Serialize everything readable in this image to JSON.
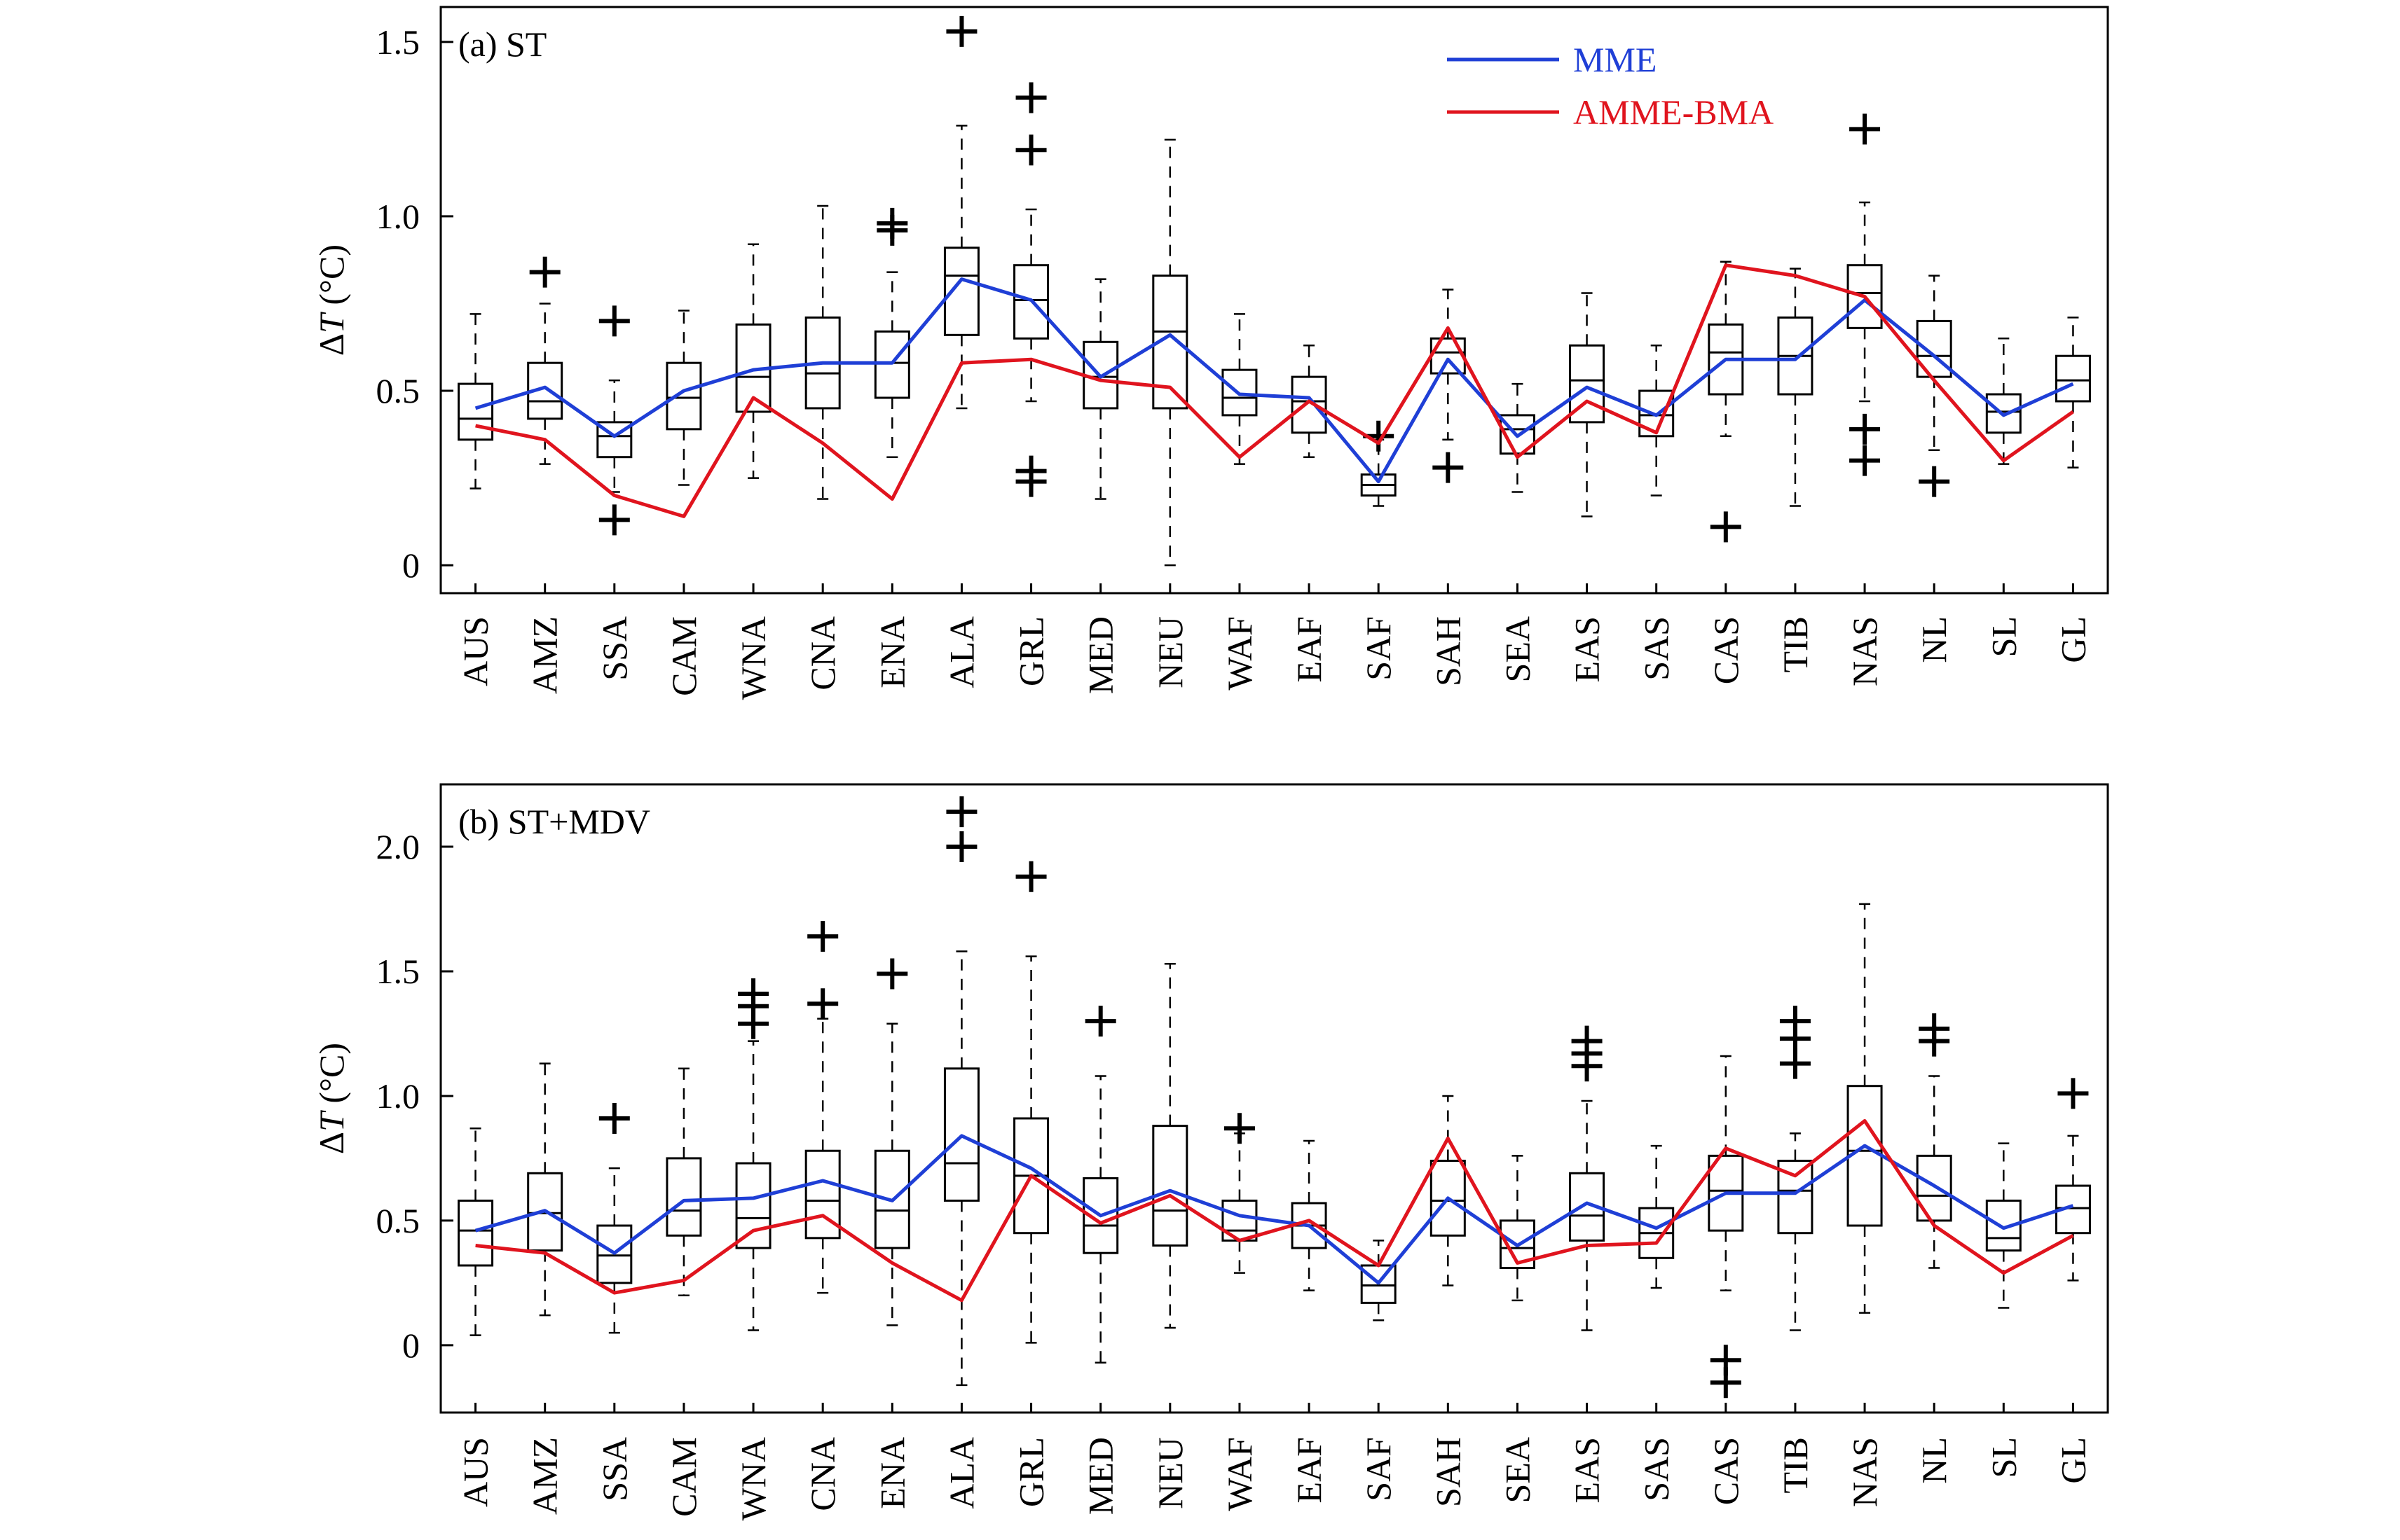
{
  "chart_data": [
    {
      "type": "box",
      "title": "(a) ST",
      "xlabel": "",
      "ylabel_prefix": "Δ",
      "ylabel_var": "T",
      "ylabel_unit": " (°C)",
      "ylim": [
        -0.08,
        1.6
      ],
      "yticks": [
        0,
        0.5,
        1.0,
        1.5
      ],
      "ytick_labels": [
        "0",
        "0.5",
        "1.0",
        "1.5"
      ],
      "legend_position": "top-right",
      "categories": [
        "AUS",
        "AMZ",
        "SSA",
        "CAM",
        "WNA",
        "CNA",
        "ENA",
        "ALA",
        "GRL",
        "MED",
        "NEU",
        "WAF",
        "EAF",
        "SAF",
        "SAH",
        "SEA",
        "EAS",
        "SAS",
        "CAS",
        "TIB",
        "NAS",
        "NL",
        "SL",
        "GL"
      ],
      "boxes": [
        {
          "min": 0.22,
          "q1": 0.36,
          "median": 0.42,
          "q3": 0.52,
          "max": 0.72,
          "outliers": []
        },
        {
          "min": 0.29,
          "q1": 0.42,
          "median": 0.47,
          "q3": 0.58,
          "max": 0.75,
          "outliers": [
            0.84
          ]
        },
        {
          "min": 0.21,
          "q1": 0.31,
          "median": 0.37,
          "q3": 0.41,
          "max": 0.53,
          "outliers": [
            0.7,
            0.13
          ]
        },
        {
          "min": 0.23,
          "q1": 0.39,
          "median": 0.48,
          "q3": 0.58,
          "max": 0.73,
          "outliers": []
        },
        {
          "min": 0.25,
          "q1": 0.44,
          "median": 0.54,
          "q3": 0.69,
          "max": 0.92,
          "outliers": []
        },
        {
          "min": 0.19,
          "q1": 0.45,
          "median": 0.55,
          "q3": 0.71,
          "max": 1.03,
          "outliers": []
        },
        {
          "min": 0.31,
          "q1": 0.48,
          "median": 0.58,
          "q3": 0.67,
          "max": 0.84,
          "outliers": [
            0.96,
            0.98
          ]
        },
        {
          "min": 0.45,
          "q1": 0.66,
          "median": 0.83,
          "q3": 0.91,
          "max": 1.26,
          "outliers": [
            1.53
          ]
        },
        {
          "min": 0.47,
          "q1": 0.65,
          "median": 0.76,
          "q3": 0.86,
          "max": 1.02,
          "outliers": [
            1.34,
            1.19,
            0.27,
            0.24
          ]
        },
        {
          "min": 0.19,
          "q1": 0.45,
          "median": 0.54,
          "q3": 0.64,
          "max": 0.82,
          "outliers": []
        },
        {
          "min": 0.0,
          "q1": 0.45,
          "median": 0.67,
          "q3": 0.83,
          "max": 1.22,
          "outliers": []
        },
        {
          "min": 0.29,
          "q1": 0.43,
          "median": 0.48,
          "q3": 0.56,
          "max": 0.72,
          "outliers": []
        },
        {
          "min": 0.31,
          "q1": 0.38,
          "median": 0.47,
          "q3": 0.54,
          "max": 0.63,
          "outliers": []
        },
        {
          "min": 0.17,
          "q1": 0.2,
          "median": 0.23,
          "q3": 0.26,
          "max": 0.36,
          "outliers": [
            0.37
          ]
        },
        {
          "min": 0.36,
          "q1": 0.55,
          "median": 0.61,
          "q3": 0.65,
          "max": 0.79,
          "outliers": [
            0.28
          ]
        },
        {
          "min": 0.21,
          "q1": 0.32,
          "median": 0.39,
          "q3": 0.43,
          "max": 0.52,
          "outliers": []
        },
        {
          "min": 0.14,
          "q1": 0.41,
          "median": 0.53,
          "q3": 0.63,
          "max": 0.78,
          "outliers": []
        },
        {
          "min": 0.2,
          "q1": 0.37,
          "median": 0.43,
          "q3": 0.5,
          "max": 0.63,
          "outliers": []
        },
        {
          "min": 0.37,
          "q1": 0.49,
          "median": 0.61,
          "q3": 0.69,
          "max": 0.87,
          "outliers": [
            0.11
          ]
        },
        {
          "min": 0.17,
          "q1": 0.49,
          "median": 0.6,
          "q3": 0.71,
          "max": 0.85,
          "outliers": []
        },
        {
          "min": 0.47,
          "q1": 0.68,
          "median": 0.78,
          "q3": 0.86,
          "max": 1.04,
          "outliers": [
            1.25,
            0.39,
            0.3
          ]
        },
        {
          "min": 0.33,
          "q1": 0.54,
          "median": 0.6,
          "q3": 0.7,
          "max": 0.83,
          "outliers": [
            0.24
          ]
        },
        {
          "min": 0.29,
          "q1": 0.38,
          "median": 0.44,
          "q3": 0.49,
          "max": 0.65,
          "outliers": []
        },
        {
          "min": 0.28,
          "q1": 0.47,
          "median": 0.53,
          "q3": 0.6,
          "max": 0.71,
          "outliers": []
        }
      ],
      "series": [
        {
          "name": "MME",
          "color": "#1f3fd6",
          "values": [
            0.45,
            0.51,
            0.37,
            0.5,
            0.56,
            0.58,
            0.58,
            0.82,
            0.76,
            0.54,
            0.66,
            0.49,
            0.48,
            0.24,
            0.59,
            0.37,
            0.51,
            0.43,
            0.59,
            0.59,
            0.76,
            0.6,
            0.43,
            0.52
          ]
        },
        {
          "name": "AMME-BMA",
          "color": "#e0141e",
          "values": [
            0.4,
            0.36,
            0.2,
            0.14,
            0.48,
            0.35,
            0.19,
            0.58,
            0.59,
            0.53,
            0.51,
            0.31,
            0.47,
            0.35,
            0.68,
            0.31,
            0.47,
            0.38,
            0.86,
            0.83,
            0.77,
            0.53,
            0.3,
            0.44
          ]
        }
      ]
    },
    {
      "type": "box",
      "title": "(b) ST+MDV",
      "xlabel": "",
      "ylabel_prefix": "Δ",
      "ylabel_var": "T",
      "ylabel_unit": " (°C)",
      "ylim": [
        -0.27,
        2.25
      ],
      "yticks": [
        0,
        0.5,
        1.0,
        1.5,
        2.0
      ],
      "ytick_labels": [
        "0",
        "0.5",
        "1.0",
        "1.5",
        "2.0"
      ],
      "categories": [
        "AUS",
        "AMZ",
        "SSA",
        "CAM",
        "WNA",
        "CNA",
        "ENA",
        "ALA",
        "GRL",
        "MED",
        "NEU",
        "WAF",
        "EAF",
        "SAF",
        "SAH",
        "SEA",
        "EAS",
        "SAS",
        "CAS",
        "TIB",
        "NAS",
        "NL",
        "SL",
        "GL"
      ],
      "boxes": [
        {
          "min": 0.04,
          "q1": 0.32,
          "median": 0.46,
          "q3": 0.58,
          "max": 0.87,
          "outliers": []
        },
        {
          "min": 0.12,
          "q1": 0.38,
          "median": 0.53,
          "q3": 0.69,
          "max": 1.13,
          "outliers": []
        },
        {
          "min": 0.05,
          "q1": 0.25,
          "median": 0.36,
          "q3": 0.48,
          "max": 0.71,
          "outliers": [
            0.91
          ]
        },
        {
          "min": 0.2,
          "q1": 0.44,
          "median": 0.54,
          "q3": 0.75,
          "max": 1.11,
          "outliers": []
        },
        {
          "min": 0.06,
          "q1": 0.39,
          "median": 0.51,
          "q3": 0.73,
          "max": 1.22,
          "outliers": [
            1.29,
            1.36,
            1.41
          ]
        },
        {
          "min": 0.21,
          "q1": 0.43,
          "median": 0.58,
          "q3": 0.78,
          "max": 1.31,
          "outliers": [
            1.37,
            1.64
          ]
        },
        {
          "min": 0.08,
          "q1": 0.39,
          "median": 0.54,
          "q3": 0.78,
          "max": 1.29,
          "outliers": [
            1.49
          ]
        },
        {
          "min": -0.16,
          "q1": 0.58,
          "median": 0.73,
          "q3": 1.11,
          "max": 1.58,
          "outliers": [
            2.14,
            2.0
          ]
        },
        {
          "min": 0.01,
          "q1": 0.45,
          "median": 0.68,
          "q3": 0.91,
          "max": 1.56,
          "outliers": [
            1.88
          ]
        },
        {
          "min": -0.07,
          "q1": 0.37,
          "median": 0.48,
          "q3": 0.67,
          "max": 1.08,
          "outliers": [
            1.3
          ]
        },
        {
          "min": 0.07,
          "q1": 0.4,
          "median": 0.54,
          "q3": 0.88,
          "max": 1.53,
          "outliers": []
        },
        {
          "min": 0.29,
          "q1": 0.42,
          "median": 0.46,
          "q3": 0.58,
          "max": 0.85,
          "outliers": [
            0.87
          ]
        },
        {
          "min": 0.22,
          "q1": 0.39,
          "median": 0.48,
          "q3": 0.57,
          "max": 0.82,
          "outliers": []
        },
        {
          "min": 0.1,
          "q1": 0.17,
          "median": 0.24,
          "q3": 0.32,
          "max": 0.42,
          "outliers": []
        },
        {
          "min": 0.24,
          "q1": 0.44,
          "median": 0.58,
          "q3": 0.74,
          "max": 1.0,
          "outliers": []
        },
        {
          "min": 0.18,
          "q1": 0.31,
          "median": 0.39,
          "q3": 0.5,
          "max": 0.76,
          "outliers": []
        },
        {
          "min": 0.06,
          "q1": 0.42,
          "median": 0.52,
          "q3": 0.69,
          "max": 0.98,
          "outliers": [
            1.12,
            1.17,
            1.22
          ]
        },
        {
          "min": 0.23,
          "q1": 0.35,
          "median": 0.45,
          "q3": 0.55,
          "max": 0.8,
          "outliers": []
        },
        {
          "min": 0.22,
          "q1": 0.46,
          "median": 0.62,
          "q3": 0.76,
          "max": 1.16,
          "outliers": [
            -0.06,
            -0.15
          ]
        },
        {
          "min": 0.06,
          "q1": 0.45,
          "median": 0.62,
          "q3": 0.74,
          "max": 0.85,
          "outliers": [
            1.13,
            1.23,
            1.3
          ]
        },
        {
          "min": 0.13,
          "q1": 0.48,
          "median": 0.78,
          "q3": 1.04,
          "max": 1.77,
          "outliers": []
        },
        {
          "min": 0.31,
          "q1": 0.5,
          "median": 0.6,
          "q3": 0.76,
          "max": 1.08,
          "outliers": [
            1.22,
            1.27
          ]
        },
        {
          "min": 0.15,
          "q1": 0.38,
          "median": 0.43,
          "q3": 0.58,
          "max": 0.81,
          "outliers": []
        },
        {
          "min": 0.26,
          "q1": 0.45,
          "median": 0.55,
          "q3": 0.64,
          "max": 0.84,
          "outliers": [
            1.01
          ]
        }
      ],
      "series": [
        {
          "name": "MME",
          "color": "#1f3fd6",
          "values": [
            0.46,
            0.54,
            0.37,
            0.58,
            0.59,
            0.66,
            0.58,
            0.84,
            0.71,
            0.52,
            0.62,
            0.52,
            0.48,
            0.25,
            0.59,
            0.4,
            0.57,
            0.47,
            0.61,
            0.61,
            0.8,
            0.64,
            0.47,
            0.56
          ]
        },
        {
          "name": "AMME-BMA",
          "color": "#e0141e",
          "values": [
            0.4,
            0.37,
            0.21,
            0.26,
            0.46,
            0.52,
            0.33,
            0.18,
            0.68,
            0.49,
            0.6,
            0.42,
            0.5,
            0.32,
            0.83,
            0.33,
            0.4,
            0.41,
            0.79,
            0.68,
            0.9,
            0.48,
            0.29,
            0.44
          ]
        }
      ]
    }
  ]
}
